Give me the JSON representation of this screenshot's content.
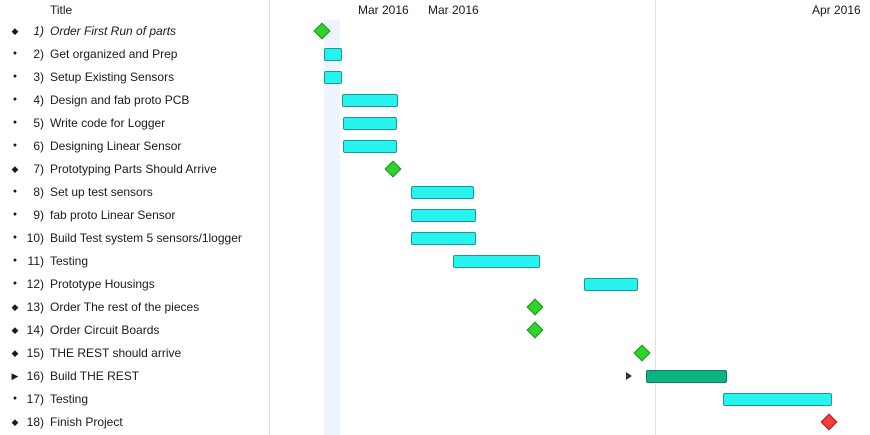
{
  "header": {
    "title": "Title"
  },
  "timeline": {
    "labels": [
      "Mar 2016",
      "Mar 2016",
      "Apr 2016"
    ]
  },
  "tasks": [
    {
      "num": "1)",
      "name": "Order First Run of parts",
      "italic": true,
      "kind": "milestone",
      "color": "green"
    },
    {
      "num": "2)",
      "name": "Get organized and Prep",
      "italic": false,
      "kind": "task"
    },
    {
      "num": "3)",
      "name": "Setup Existing Sensors",
      "italic": false,
      "kind": "task"
    },
    {
      "num": "4)",
      "name": "Design and fab proto PCB",
      "italic": false,
      "kind": "task"
    },
    {
      "num": "5)",
      "name": "Write code for Logger",
      "italic": false,
      "kind": "task"
    },
    {
      "num": "6)",
      "name": "Designing Linear Sensor",
      "italic": false,
      "kind": "task"
    },
    {
      "num": "7)",
      "name": "Prototyping Parts Should Arrive",
      "italic": false,
      "kind": "milestone",
      "color": "green"
    },
    {
      "num": "8)",
      "name": "Set up test sensors",
      "italic": false,
      "kind": "task"
    },
    {
      "num": "9)",
      "name": "fab proto Linear Sensor",
      "italic": false,
      "kind": "task"
    },
    {
      "num": "10)",
      "name": "Build Test system 5 sensors/1logger",
      "italic": false,
      "kind": "task"
    },
    {
      "num": "11)",
      "name": "Testing",
      "italic": false,
      "kind": "task"
    },
    {
      "num": "12)",
      "name": "Prototype Housings",
      "italic": false,
      "kind": "task"
    },
    {
      "num": "13)",
      "name": "Order The rest of the pieces",
      "italic": false,
      "kind": "milestone",
      "color": "green"
    },
    {
      "num": "14)",
      "name": "Order Circuit Boards",
      "italic": false,
      "kind": "milestone",
      "color": "green"
    },
    {
      "num": "15)",
      "name": "THE REST should arrive",
      "italic": false,
      "kind": "milestone",
      "color": "green"
    },
    {
      "num": "16)",
      "name": "Build THE REST",
      "italic": false,
      "kind": "summary",
      "collapsed": true
    },
    {
      "num": "17)",
      "name": "Testing",
      "italic": false,
      "kind": "task"
    },
    {
      "num": "18)",
      "name": "Finish Project",
      "italic": false,
      "kind": "milestone",
      "color": "red"
    }
  ]
}
